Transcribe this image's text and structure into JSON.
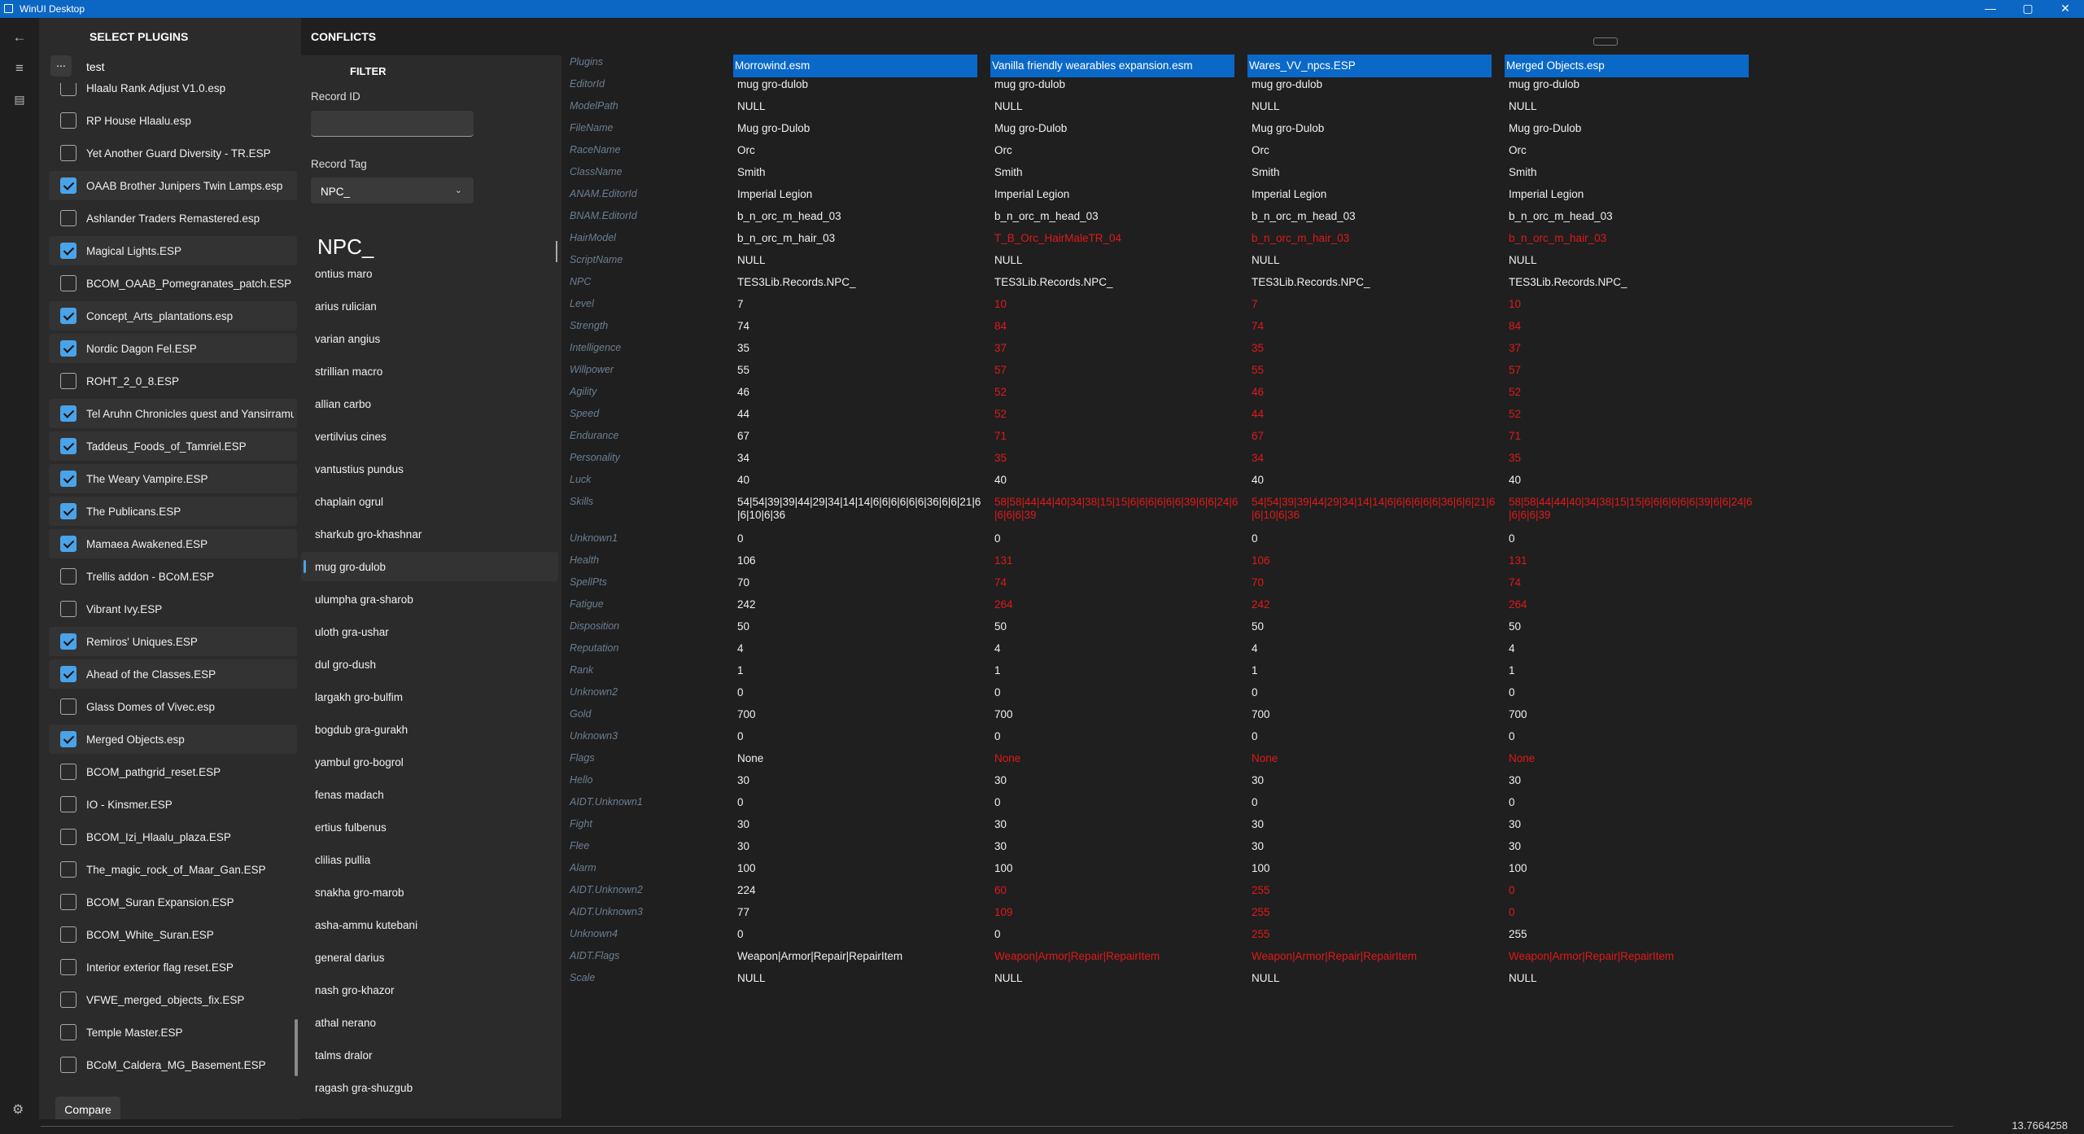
{
  "window": {
    "title": "WinUI Desktop",
    "minimize": "—",
    "maximize": "▢",
    "close": "✕"
  },
  "rail": {
    "back_icon": "←",
    "menu_icon": "≡",
    "plugin_icon": "▤",
    "settings_icon": "⚙"
  },
  "plugins_panel": {
    "title": "SELECT PLUGINS",
    "tool_button": "...",
    "search_value": "test",
    "items": [
      {
        "label": "Hlaalu Rank Adjust V1.0.esp",
        "checked": false
      },
      {
        "label": "RP House Hlaalu.esp",
        "checked": false
      },
      {
        "label": "Yet Another Guard Diversity - TR.ESP",
        "checked": false
      },
      {
        "label": "OAAB Brother Junipers Twin Lamps.esp",
        "checked": true
      },
      {
        "label": "Ashlander Traders Remastered.esp",
        "checked": false
      },
      {
        "label": "Magical Lights.ESP",
        "checked": true
      },
      {
        "label": "BCOM_OAAB_Pomegranates_patch.ESP",
        "checked": false
      },
      {
        "label": "Concept_Arts_plantations.esp",
        "checked": true
      },
      {
        "label": "Nordic Dagon Fel.ESP",
        "checked": true
      },
      {
        "label": "ROHT_2_0_8.ESP",
        "checked": false
      },
      {
        "label": "Tel Aruhn Chronicles quest and Yansirramus",
        "checked": true
      },
      {
        "label": "Taddeus_Foods_of_Tamriel.ESP",
        "checked": true
      },
      {
        "label": "The Weary Vampire.ESP",
        "checked": true
      },
      {
        "label": "The Publicans.ESP",
        "checked": true
      },
      {
        "label": "Mamaea Awakened.ESP",
        "checked": true
      },
      {
        "label": "Trellis addon - BCoM.ESP",
        "checked": false
      },
      {
        "label": "Vibrant Ivy.ESP",
        "checked": false
      },
      {
        "label": "Remiros' Uniques.ESP",
        "checked": true
      },
      {
        "label": "Ahead of the Classes.ESP",
        "checked": true
      },
      {
        "label": "Glass Domes of Vivec.esp",
        "checked": false
      },
      {
        "label": "Merged Objects.esp",
        "checked": true
      },
      {
        "label": "BCOM_pathgrid_reset.ESP",
        "checked": false
      },
      {
        "label": "IO - Kinsmer.ESP",
        "checked": false
      },
      {
        "label": "BCOM_Izi_Hlaalu_plaza.ESP",
        "checked": false
      },
      {
        "label": "The_magic_rock_of_Maar_Gan.ESP",
        "checked": false
      },
      {
        "label": "BCOM_Suran Expansion.ESP",
        "checked": false
      },
      {
        "label": "BCOM_White_Suran.ESP",
        "checked": false
      },
      {
        "label": "Interior exterior flag reset.ESP",
        "checked": false
      },
      {
        "label": "VFWE_merged_objects_fix.ESP",
        "checked": false
      },
      {
        "label": "Temple Master.ESP",
        "checked": false
      },
      {
        "label": "BCoM_Caldera_MG_Basement.ESP",
        "checked": false
      }
    ],
    "compare_button": "Compare"
  },
  "conflicts_panel": {
    "title": "CONFLICTS",
    "filter_title": "FILTER",
    "record_id_label": "Record ID",
    "record_id_value": "",
    "record_tag_label": "Record Tag",
    "record_tag_value": "NPC_",
    "big_tag": "NPC_",
    "records": [
      "ontius maro",
      "arius rulician",
      "varian angius",
      "strillian macro",
      "allian carbo",
      "vertilvius cines",
      "vantustius pundus",
      "chaplain ogrul",
      "sharkub gro-khashnar",
      "mug gro-dulob",
      "ulumpha gra-sharob",
      "uloth gra-ushar",
      "dul gro-dush",
      "largakh gro-bulfim",
      "bogdub gra-gurakh",
      "yambul gro-bogrol",
      "fenas madach",
      "ertius fulbenus",
      "clilias pullia",
      "snakha gro-marob",
      "asha-ammu kutebani",
      "general darius",
      "nash gro-khazor",
      "athal nerano",
      "talms dralor",
      "ragash gra-shuzgub"
    ],
    "selected_record": "mug gro-dulob"
  },
  "grid": {
    "field_names": [
      "Plugins",
      "EditorId",
      "ModelPath",
      "FileName",
      "RaceName",
      "ClassName",
      "ANAM.EditorId",
      "BNAM.EditorId",
      "HairModel",
      "ScriptName",
      "NPC",
      "Level",
      "Strength",
      "Intelligence",
      "Willpower",
      "Agility",
      "Speed",
      "Endurance",
      "Personality",
      "Luck",
      "Skills",
      "Unknown1",
      "Health",
      "SpellPts",
      "Fatigue",
      "Disposition",
      "Reputation",
      "Rank",
      "Unknown2",
      "Gold",
      "Unknown3",
      "Flags",
      "Hello",
      "AIDT.Unknown1",
      "Fight",
      "Flee",
      "Alarm",
      "AIDT.Unknown2",
      "AIDT.Unknown3",
      "Unknown4",
      "AIDT.Flags",
      "Scale"
    ],
    "columns": [
      {
        "header": "Morrowind.esm",
        "values": [
          "mug gro-dulob",
          "NULL",
          "Mug gro-Dulob",
          "Orc",
          "Smith",
          "Imperial Legion",
          "b_n_orc_m_head_03",
          "b_n_orc_m_hair_03",
          "NULL",
          "TES3Lib.Records.NPC_",
          "7",
          "74",
          "35",
          "55",
          "46",
          "44",
          "67",
          "34",
          "40",
          "54|54|39|39|44|29|34|14|14|6|6|6|6|6|6|36|6|6|21|6|6|10|6|36",
          "0",
          "106",
          "70",
          "242",
          "50",
          "4",
          "1",
          "0",
          "700",
          "0",
          "None",
          "30",
          "0",
          "30",
          "30",
          "100",
          "224",
          "77",
          "0",
          "Weapon|Armor|Repair|RepairItem",
          "NULL"
        ],
        "conflicts": []
      },
      {
        "header": "Vanilla friendly wearables expansion.esm",
        "values": [
          "mug gro-dulob",
          "NULL",
          "Mug gro-Dulob",
          "Orc",
          "Smith",
          "Imperial Legion",
          "b_n_orc_m_head_03",
          "T_B_Orc_HairMaleTR_04",
          "NULL",
          "TES3Lib.Records.NPC_",
          "10",
          "84",
          "37",
          "57",
          "52",
          "52",
          "71",
          "35",
          "40",
          "58|58|44|44|40|34|38|15|15|6|6|6|6|6|6|39|6|6|24|6|6|6|6|39",
          "0",
          "131",
          "74",
          "264",
          "50",
          "4",
          "1",
          "0",
          "700",
          "0",
          "None",
          "30",
          "0",
          "30",
          "30",
          "100",
          "60",
          "109",
          "0",
          "Weapon|Armor|Repair|RepairItem",
          "NULL"
        ],
        "conflicts": [
          7,
          10,
          11,
          12,
          13,
          14,
          15,
          16,
          17,
          19,
          21,
          22,
          23,
          30,
          36,
          37,
          39
        ]
      },
      {
        "header": "Wares_VV_npcs.ESP",
        "values": [
          "mug gro-dulob",
          "NULL",
          "Mug gro-Dulob",
          "Orc",
          "Smith",
          "Imperial Legion",
          "b_n_orc_m_head_03",
          "b_n_orc_m_hair_03",
          "NULL",
          "TES3Lib.Records.NPC_",
          "7",
          "74",
          "35",
          "55",
          "46",
          "44",
          "67",
          "34",
          "40",
          "54|54|39|39|44|29|34|14|14|6|6|6|6|6|6|36|6|6|21|6|6|10|6|36",
          "0",
          "106",
          "70",
          "242",
          "50",
          "4",
          "1",
          "0",
          "700",
          "0",
          "None",
          "30",
          "0",
          "30",
          "30",
          "100",
          "255",
          "255",
          "255",
          "Weapon|Armor|Repair|RepairItem",
          "NULL"
        ],
        "conflicts": [
          7,
          10,
          11,
          12,
          13,
          14,
          15,
          16,
          17,
          19,
          21,
          22,
          23,
          30,
          36,
          37,
          38,
          39
        ]
      },
      {
        "header": "Merged Objects.esp",
        "values": [
          "mug gro-dulob",
          "NULL",
          "Mug gro-Dulob",
          "Orc",
          "Smith",
          "Imperial Legion",
          "b_n_orc_m_head_03",
          "b_n_orc_m_hair_03",
          "NULL",
          "TES3Lib.Records.NPC_",
          "10",
          "84",
          "37",
          "57",
          "52",
          "52",
          "71",
          "35",
          "40",
          "58|58|44|44|40|34|38|15|15|6|6|6|6|6|6|39|6|6|24|6|6|6|6|39",
          "0",
          "131",
          "74",
          "264",
          "50",
          "4",
          "1",
          "0",
          "700",
          "0",
          "None",
          "30",
          "0",
          "30",
          "30",
          "100",
          "0",
          "0",
          "255",
          "Weapon|Armor|Repair|RepairItem",
          "NULL"
        ],
        "conflicts": [
          7,
          10,
          11,
          12,
          13,
          14,
          15,
          16,
          17,
          19,
          21,
          22,
          23,
          30,
          36,
          37,
          39
        ]
      }
    ]
  },
  "status": {
    "value": "13.7664258"
  }
}
